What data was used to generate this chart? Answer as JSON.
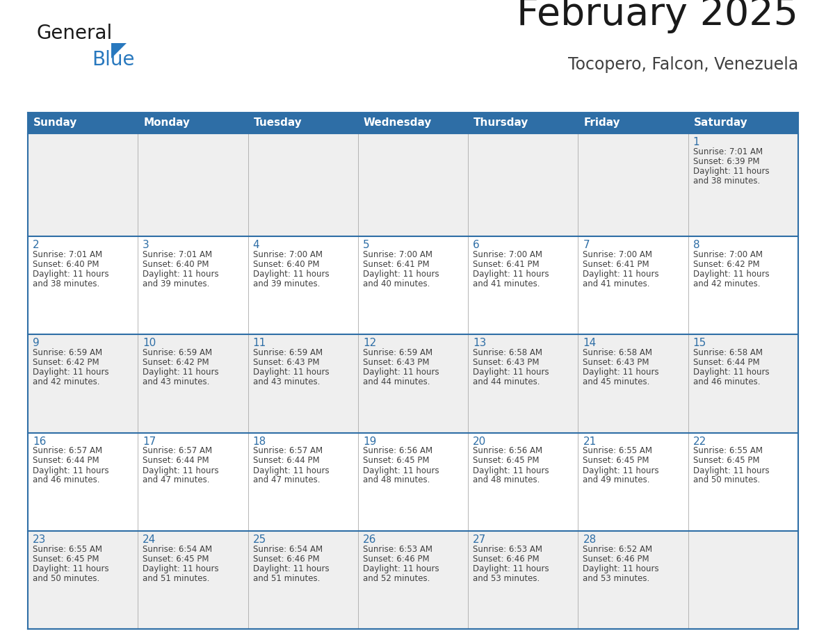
{
  "title": "February 2025",
  "subtitle": "Tocopero, Falcon, Venezuela",
  "days_of_week": [
    "Sunday",
    "Monday",
    "Tuesday",
    "Wednesday",
    "Thursday",
    "Friday",
    "Saturday"
  ],
  "header_bg": "#2E6EA6",
  "header_text": "#FFFFFF",
  "border_color": "#2E6EA6",
  "day_num_color": "#2E6EA6",
  "cell_text_color": "#404040",
  "grid_line_color": "#AAAAAA",
  "row_bg_light": "#EFEFEF",
  "row_bg_white": "#FFFFFF",
  "calendar": [
    [
      null,
      null,
      null,
      null,
      null,
      null,
      {
        "day": 1,
        "sunrise": "7:01 AM",
        "sunset": "6:39 PM",
        "daylight_line1": "Daylight: 11 hours",
        "daylight_line2": "and 38 minutes."
      }
    ],
    [
      {
        "day": 2,
        "sunrise": "7:01 AM",
        "sunset": "6:40 PM",
        "daylight_line1": "Daylight: 11 hours",
        "daylight_line2": "and 38 minutes."
      },
      {
        "day": 3,
        "sunrise": "7:01 AM",
        "sunset": "6:40 PM",
        "daylight_line1": "Daylight: 11 hours",
        "daylight_line2": "and 39 minutes."
      },
      {
        "day": 4,
        "sunrise": "7:00 AM",
        "sunset": "6:40 PM",
        "daylight_line1": "Daylight: 11 hours",
        "daylight_line2": "and 39 minutes."
      },
      {
        "day": 5,
        "sunrise": "7:00 AM",
        "sunset": "6:41 PM",
        "daylight_line1": "Daylight: 11 hours",
        "daylight_line2": "and 40 minutes."
      },
      {
        "day": 6,
        "sunrise": "7:00 AM",
        "sunset": "6:41 PM",
        "daylight_line1": "Daylight: 11 hours",
        "daylight_line2": "and 41 minutes."
      },
      {
        "day": 7,
        "sunrise": "7:00 AM",
        "sunset": "6:41 PM",
        "daylight_line1": "Daylight: 11 hours",
        "daylight_line2": "and 41 minutes."
      },
      {
        "day": 8,
        "sunrise": "7:00 AM",
        "sunset": "6:42 PM",
        "daylight_line1": "Daylight: 11 hours",
        "daylight_line2": "and 42 minutes."
      }
    ],
    [
      {
        "day": 9,
        "sunrise": "6:59 AM",
        "sunset": "6:42 PM",
        "daylight_line1": "Daylight: 11 hours",
        "daylight_line2": "and 42 minutes."
      },
      {
        "day": 10,
        "sunrise": "6:59 AM",
        "sunset": "6:42 PM",
        "daylight_line1": "Daylight: 11 hours",
        "daylight_line2": "and 43 minutes."
      },
      {
        "day": 11,
        "sunrise": "6:59 AM",
        "sunset": "6:43 PM",
        "daylight_line1": "Daylight: 11 hours",
        "daylight_line2": "and 43 minutes."
      },
      {
        "day": 12,
        "sunrise": "6:59 AM",
        "sunset": "6:43 PM",
        "daylight_line1": "Daylight: 11 hours",
        "daylight_line2": "and 44 minutes."
      },
      {
        "day": 13,
        "sunrise": "6:58 AM",
        "sunset": "6:43 PM",
        "daylight_line1": "Daylight: 11 hours",
        "daylight_line2": "and 44 minutes."
      },
      {
        "day": 14,
        "sunrise": "6:58 AM",
        "sunset": "6:43 PM",
        "daylight_line1": "Daylight: 11 hours",
        "daylight_line2": "and 45 minutes."
      },
      {
        "day": 15,
        "sunrise": "6:58 AM",
        "sunset": "6:44 PM",
        "daylight_line1": "Daylight: 11 hours",
        "daylight_line2": "and 46 minutes."
      }
    ],
    [
      {
        "day": 16,
        "sunrise": "6:57 AM",
        "sunset": "6:44 PM",
        "daylight_line1": "Daylight: 11 hours",
        "daylight_line2": "and 46 minutes."
      },
      {
        "day": 17,
        "sunrise": "6:57 AM",
        "sunset": "6:44 PM",
        "daylight_line1": "Daylight: 11 hours",
        "daylight_line2": "and 47 minutes."
      },
      {
        "day": 18,
        "sunrise": "6:57 AM",
        "sunset": "6:44 PM",
        "daylight_line1": "Daylight: 11 hours",
        "daylight_line2": "and 47 minutes."
      },
      {
        "day": 19,
        "sunrise": "6:56 AM",
        "sunset": "6:45 PM",
        "daylight_line1": "Daylight: 11 hours",
        "daylight_line2": "and 48 minutes."
      },
      {
        "day": 20,
        "sunrise": "6:56 AM",
        "sunset": "6:45 PM",
        "daylight_line1": "Daylight: 11 hours",
        "daylight_line2": "and 48 minutes."
      },
      {
        "day": 21,
        "sunrise": "6:55 AM",
        "sunset": "6:45 PM",
        "daylight_line1": "Daylight: 11 hours",
        "daylight_line2": "and 49 minutes."
      },
      {
        "day": 22,
        "sunrise": "6:55 AM",
        "sunset": "6:45 PM",
        "daylight_line1": "Daylight: 11 hours",
        "daylight_line2": "and 50 minutes."
      }
    ],
    [
      {
        "day": 23,
        "sunrise": "6:55 AM",
        "sunset": "6:45 PM",
        "daylight_line1": "Daylight: 11 hours",
        "daylight_line2": "and 50 minutes."
      },
      {
        "day": 24,
        "sunrise": "6:54 AM",
        "sunset": "6:45 PM",
        "daylight_line1": "Daylight: 11 hours",
        "daylight_line2": "and 51 minutes."
      },
      {
        "day": 25,
        "sunrise": "6:54 AM",
        "sunset": "6:46 PM",
        "daylight_line1": "Daylight: 11 hours",
        "daylight_line2": "and 51 minutes."
      },
      {
        "day": 26,
        "sunrise": "6:53 AM",
        "sunset": "6:46 PM",
        "daylight_line1": "Daylight: 11 hours",
        "daylight_line2": "and 52 minutes."
      },
      {
        "day": 27,
        "sunrise": "6:53 AM",
        "sunset": "6:46 PM",
        "daylight_line1": "Daylight: 11 hours",
        "daylight_line2": "and 53 minutes."
      },
      {
        "day": 28,
        "sunrise": "6:52 AM",
        "sunset": "6:46 PM",
        "daylight_line1": "Daylight: 11 hours",
        "daylight_line2": "and 53 minutes."
      },
      null
    ]
  ]
}
